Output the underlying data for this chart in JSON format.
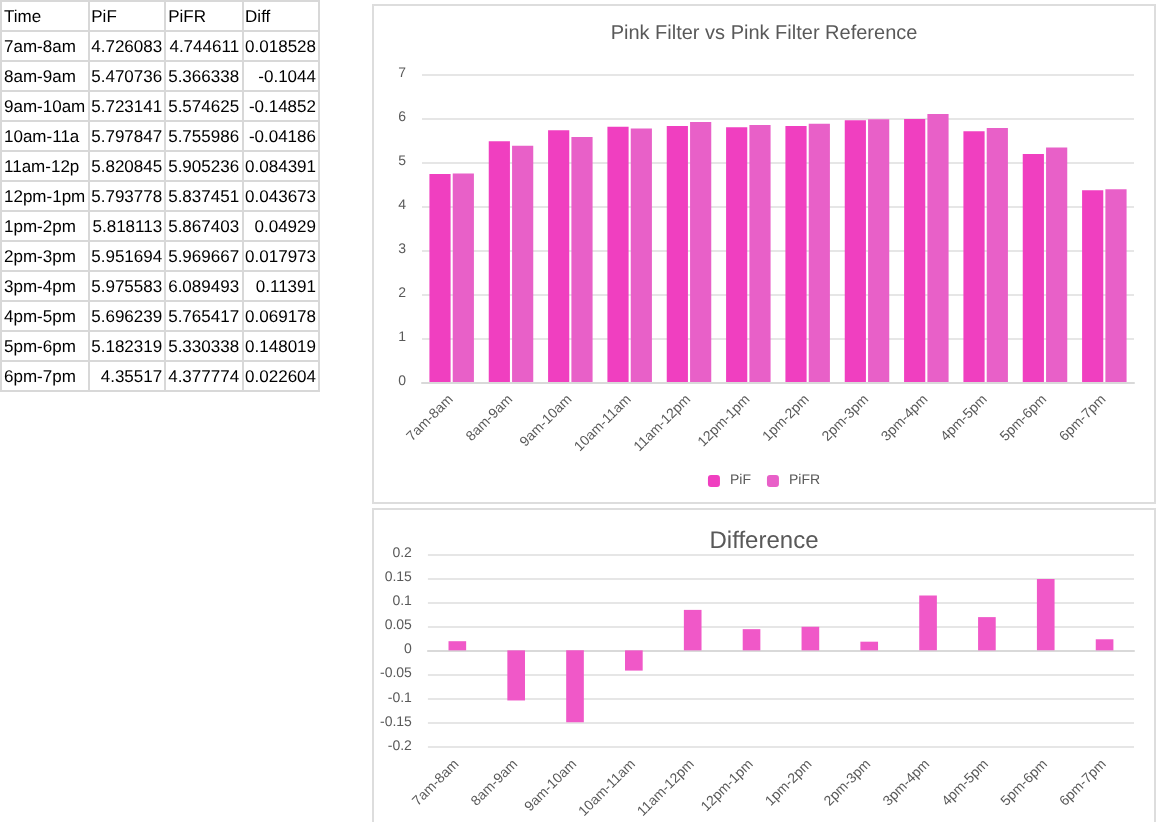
{
  "chart_data": [
    {
      "type": "other",
      "annotations": [
        "Time",
        "PiF",
        "PiFR",
        "Diff",
        "7am-8am",
        "4.726083",
        "4.744611",
        "0.018528",
        "8am-9am",
        "5.470736",
        "5.366338",
        "-0.1044",
        "9am-10am",
        "5.723141",
        "5.574625",
        "-0.14852",
        "10am-11a",
        "5.797847",
        "5.755986",
        "-0.04186",
        "11am-12p",
        "5.820845",
        "5.905236",
        "0.084391",
        "12pm-1pm",
        "5.793778",
        "5.837451",
        "0.043673",
        "1pm-2pm",
        "5.818113",
        "5.867403",
        "0.04929",
        "2pm-3pm",
        "5.951694",
        "5.969667",
        "0.017973",
        "3pm-4pm",
        "5.975583",
        "6.089493",
        "0.11391",
        "4pm-5pm",
        "5.696239",
        "5.765417",
        "0.069178",
        "5pm-6pm",
        "5.182319",
        "5.330338",
        "0.148019",
        "6pm-7pm",
        "4.35517",
        "4.377774",
        "0.022604"
      ]
    },
    {
      "type": "bar",
      "title": "Pink Filter vs Pink Filter Reference",
      "categories": [
        "7am-8am",
        "8am-9am",
        "9am-10am",
        "10am-11am",
        "11am-12pm",
        "12pm-1pm",
        "1pm-2pm",
        "2pm-3pm",
        "3pm-4pm",
        "4pm-5pm",
        "5pm-6pm",
        "6pm-7pm"
      ],
      "series": [
        {
          "name": "PiF",
          "color": "#f03fc0",
          "values": [
            4.73,
            5.47,
            5.72,
            5.8,
            5.82,
            5.79,
            5.82,
            5.95,
            5.98,
            5.7,
            5.18,
            4.36
          ]
        },
        {
          "name": "PiFR",
          "color": "#e860c8",
          "values": [
            4.74,
            5.37,
            5.57,
            5.76,
            5.91,
            5.84,
            5.87,
            5.97,
            6.09,
            5.77,
            5.33,
            4.38
          ]
        }
      ],
      "ylim": [
        0,
        7
      ],
      "yticks": [
        0,
        1,
        2,
        3,
        4,
        5,
        6,
        7
      ],
      "grid": "y",
      "legend": "bottom"
    },
    {
      "type": "bar",
      "title": "Difference",
      "categories": [
        "7am-8am",
        "8am-9am",
        "9am-10am",
        "10am-11am",
        "11am-12pm",
        "12pm-1pm",
        "1pm-2pm",
        "2pm-3pm",
        "3pm-4pm",
        "4pm-5pm",
        "5pm-6pm",
        "6pm-7pm"
      ],
      "series": [
        {
          "color": "#f058c8",
          "values": [
            0.019,
            -0.104,
            -0.149,
            -0.042,
            0.084,
            0.044,
            0.049,
            0.018,
            0.114,
            0.069,
            0.148,
            0.023
          ]
        }
      ],
      "ylim": [
        -0.2,
        0.2
      ],
      "yticks": [
        -0.2,
        -0.15,
        -0.1,
        -0.05,
        0,
        0.05,
        0.1,
        0.15,
        0.2
      ],
      "grid": "y"
    }
  ]
}
